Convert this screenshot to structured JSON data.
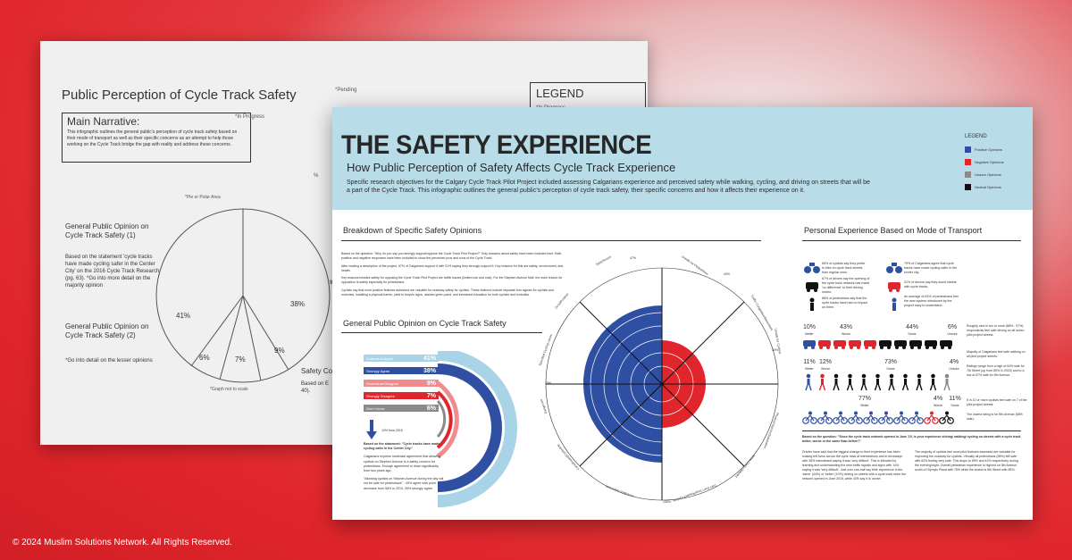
{
  "back": {
    "title": "Public Perception of Cycle Track Safety",
    "pending": "*Pending",
    "in_progress": "*In Progress",
    "legend_title": "LEGEND",
    "legend_item": "*In Progress",
    "narrative_title": "Main Narrative:",
    "narrative_body": "This infographic outlines the general public's perception of cycle track safety based on their mode of transport as well as their specific concerns as an attempt to help those working on the Cycle Track bridge the gap with reality and address these concerns.",
    "opinion1_title": "General Public Opinion on Cycle Track Safety (1)",
    "opinion1_note": "Based on the statement 'cycle tracks have made cycling safer in the Center City' on the 2016 Cycle Track Research (pg. 63). *Go into more detail on the majority opinion",
    "opinion2_title": "General Public Opinion on Cycle Track Safety (2)",
    "opinion2_note": "*Go into detail on the lesser opinions",
    "pie_area": "*Pie or Polar Area",
    "not_to_scale": "*Graph not to scale",
    "pie_values": [
      "41%",
      "38%",
      "9%",
      "7%",
      "6%"
    ],
    "safety_label": "Safety Co",
    "based_label": "Based on E 40).",
    "percent_sign": "%",
    "frag_90": "90"
  },
  "front": {
    "title": "THE SAFETY EXPERIENCE",
    "subtitle": "How Public Perception of Safety Affects Cycle Track Experience",
    "description": "Specific research objectives for the Calgary Cycle Track Pilot Project included assessing Calgarians experience and perceived safety while walking, cycling, and driving on streets that will be a part of the Cycle Track. This infographic outlines the general public's perception of cycle track safety, their specific concerns and how it affects their experience on it.",
    "legend": {
      "title": "LEGEND",
      "items": [
        {
          "label": "Positive Opinions",
          "color": "#2f4fa2"
        },
        {
          "label": "Negative Opinions",
          "color": "#e0262c"
        },
        {
          "label": "Unsure Opinions",
          "color": "#8a8a8a"
        },
        {
          "label": "Neutral Opinions",
          "color": "#111111"
        }
      ]
    },
    "breakdown": {
      "heading": "Breakdown of Specific Safety Opinions",
      "p1": "Based on the question: \"Why do you say you strongly support/oppose the Cycle Track Pilot Project?\" Only answers about safety have been included here. Both positive and negative responses have been included to show the perceived pros and cons of the Cycle Track.",
      "p2": "After reading a description of the project, 67% of Calgarians support it with 31% saying they strongly support it. Key reasons for this are safety, environment, and health.",
      "p3": "Key reasons besides safety for opposing the Cycle Track Pilot Project are traffic issues (limited use and cost). For the Stephen Avenue Mall, the main reason for opposition is safety especially for pedestrians.",
      "p4": "Cyclists say that most positive features assessed are valuable for roadway safety for cyclists. These features include separate turn signals for cyclists and motorists, installing a physical barrier, yield to bicycle signs, dashed green paint, and increased education for both cyclists and motorists."
    },
    "general_opinion": {
      "heading": "General Public Opinion on Cycle Track Safety",
      "rows": [
        {
          "label": "Somewhat Agree",
          "value": "41%",
          "color": "#a9d4e7"
        },
        {
          "label": "Strongly Agree",
          "value": "38%",
          "color": "#2f4fa2"
        },
        {
          "label": "Somewhat Disagree",
          "value": "9%",
          "color": "#f08c8e"
        },
        {
          "label": "Strongly Disagree",
          "value": "7%",
          "color": "#e0262c"
        },
        {
          "label": "Don't Know",
          "value": "6%",
          "color": "#8a8a8a"
        }
      ],
      "arrow_note": "10% from 2015",
      "lead": "Based on the statement: \"Cycle tracks have made cycling safer in the Center City.\"",
      "p1": "Calgarians express moderate agreement that allowing cyclists on Stephen Avenue is a safety concern for pedestrians. Enough agreement is down significantly from two years ago.",
      "p2": "\"Allowing cyclists on Stephen Avenue during the day will not be safe for pedestrians\" - 49% agree with point decrease from 58% in 2014. 26% strongly agree."
    },
    "radial": {
      "labels": [
        "Safe/Secure",
        "Unsafe for Pedestrians",
        "Traffic Congestion/Movement",
        "Unsafe for Cyclists",
        "Physical Barrier/Separation",
        "More Clarity Needed",
        "Cars Don't Stop/Respect Cyclists",
        "Increased Awareness",
        "Complicated/Confusing",
        "Dangerous",
        "Specified Cycling Lanes",
        "Good/Positive"
      ],
      "percent_labels": [
        "47%",
        "40%",
        "30%",
        "15%",
        "100%"
      ]
    },
    "transport": {
      "heading": "Personal Experience Based on Mode of Transport",
      "stats": [
        "65% of cyclists say they prefer to bike on cycle track streets than regular ones.",
        "79% of Calgarians agree that cycle tracks have made cycling safer in the center city.",
        "67% of drivers say the opening of the cycle track network has made 'no difference' to their driving routes.",
        "31% of drivers say they avoid streets with cycle tracks.",
        "88% of pedestrians say that the cycle tracks have had no impact on them.",
        "An average of 63% of pedestrians feel the new system introduced by the project easy to understand."
      ],
      "car_nums": [
        {
          "num": "10%",
          "lab": "Better"
        },
        {
          "num": "43%",
          "lab": "Worse"
        },
        {
          "num": "44%",
          "lab": "Same"
        },
        {
          "num": "6%",
          "lab": "Unsure"
        }
      ],
      "car_note": "Roughly nine in ten or more (88% - 97%) respondents feel safe driving on all seven pilot project streets.",
      "walk_nums": [
        {
          "num": "11%",
          "lab": "Better"
        },
        {
          "num": "12%",
          "lab": "Worse"
        },
        {
          "num": "73%",
          "lab": "Same"
        },
        {
          "num": "4%",
          "lab": "Unsure"
        }
      ],
      "walk_note1": "Majority of Calgarians feel safe walking on all pilot project streets.",
      "walk_note2": "Ratings range from a high of 94% safe for 7th Street (up from 85% in 2015) and to a low of 67% safe for 5th Avenue.",
      "bike_nums": [
        {
          "num": "77%",
          "lab": "Better"
        },
        {
          "num": "4%",
          "lab": "Worse"
        },
        {
          "num": "11%",
          "lab": "Same"
        }
      ],
      "bike_note1": "8 in 10 or more cyclists feel safe on 7 of the pilot project streets.",
      "bike_note2": "The lowest rating is for 5th Avenue (68% safe).",
      "foot_lead": "Based on the question: \"Since the cycle track network opened in June '15, is your experience driving/ walking/ cycling on streets with a cycle track better, worse or the same than before?\"",
      "foot_left": "Drivers have said that the biggest change to their experience has been making left turns across the cycle track at intersections and in driveways with 28% interviewed saying it was 'very difficult'. This is followed by learning and understanding the new traffic signals and signs with 14% saying it was 'very difficult'. Just over one-half say their experience is the 'same' (44%) or 'better' (10%) driving on streets with a cycle track since the network opened in June 2015, while 43% say it is 'worse'.",
      "foot_right": "The majority of cyclists feel most pilot features assessed are valuable for improving the roadway for cyclists. Virtually all pedestrians (98%) felt safe with 63% feeling very safe. This drops to 89% and 42% respectively during the evening/night. Overall pedestrian experience is highest on 5th Avenue south of Olympic Plaza with 75% while the lowest is 5th Street with 55%."
    }
  },
  "copyright": "© 2024 Muslim Solutions Network. All Rights Reserved."
}
